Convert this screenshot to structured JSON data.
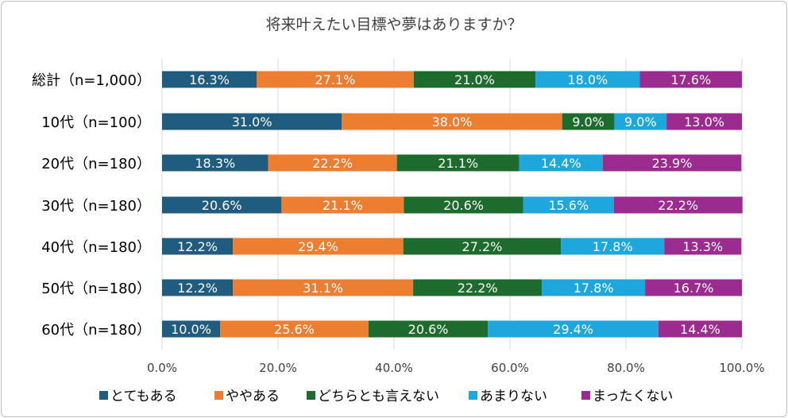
{
  "chart_data": {
    "type": "bar",
    "orientation": "horizontal",
    "stacked": true,
    "title": "将来叶えたい目標や夢はありますか？",
    "categories": [
      "総計（n=1,000）",
      "10代（n=100）",
      "20代（n=180）",
      "30代（n=180）",
      "40代（n=180）",
      "50代（n=180）",
      "60代（n=180）"
    ],
    "series": [
      {
        "name": "とてもある",
        "color": "#1f5c80",
        "values": [
          16.3,
          31.0,
          18.3,
          20.6,
          12.2,
          12.2,
          10.0
        ],
        "labels": [
          "16.3%",
          "31.0%",
          "18.3%",
          "20.6%",
          "12.2%",
          "12.2%",
          "10.0%"
        ]
      },
      {
        "name": "ややある",
        "color": "#ed7d31",
        "values": [
          27.1,
          38.0,
          22.2,
          21.1,
          29.4,
          31.1,
          25.6
        ],
        "labels": [
          "27.1%",
          "38.0%",
          "22.2%",
          "21.1%",
          "29.4%",
          "31.1%",
          "25.6%"
        ]
      },
      {
        "name": "どちらとも言えない",
        "color": "#1e6b2e",
        "values": [
          21.0,
          9.0,
          21.1,
          20.6,
          27.2,
          22.2,
          20.6
        ],
        "labels": [
          "21.0%",
          "9.0%",
          "21.1%",
          "20.6%",
          "27.2%",
          "22.2%",
          "20.6%"
        ]
      },
      {
        "name": "あまりない",
        "color": "#1ea7dc",
        "values": [
          18.0,
          9.0,
          14.4,
          15.6,
          17.8,
          17.8,
          29.4
        ],
        "labels": [
          "18.0%",
          "9.0%",
          "14.4%",
          "15.6%",
          "17.8%",
          "17.8%",
          "29.4%"
        ]
      },
      {
        "name": "まったくない",
        "color": "#9b2b8e",
        "values": [
          17.6,
          13.0,
          23.9,
          22.2,
          13.3,
          16.7,
          14.4
        ],
        "labels": [
          "17.6%",
          "13.0%",
          "23.9%",
          "22.2%",
          "13.3%",
          "16.7%",
          "14.4%"
        ]
      }
    ],
    "xlim": [
      0,
      100
    ],
    "xticks": [
      0,
      20,
      40,
      60,
      80,
      100
    ],
    "xtick_labels": [
      "0.0%",
      "20.0%",
      "40.0%",
      "60.0%",
      "80.0%",
      "100.0%"
    ],
    "grid": true,
    "legend": "bottom"
  }
}
